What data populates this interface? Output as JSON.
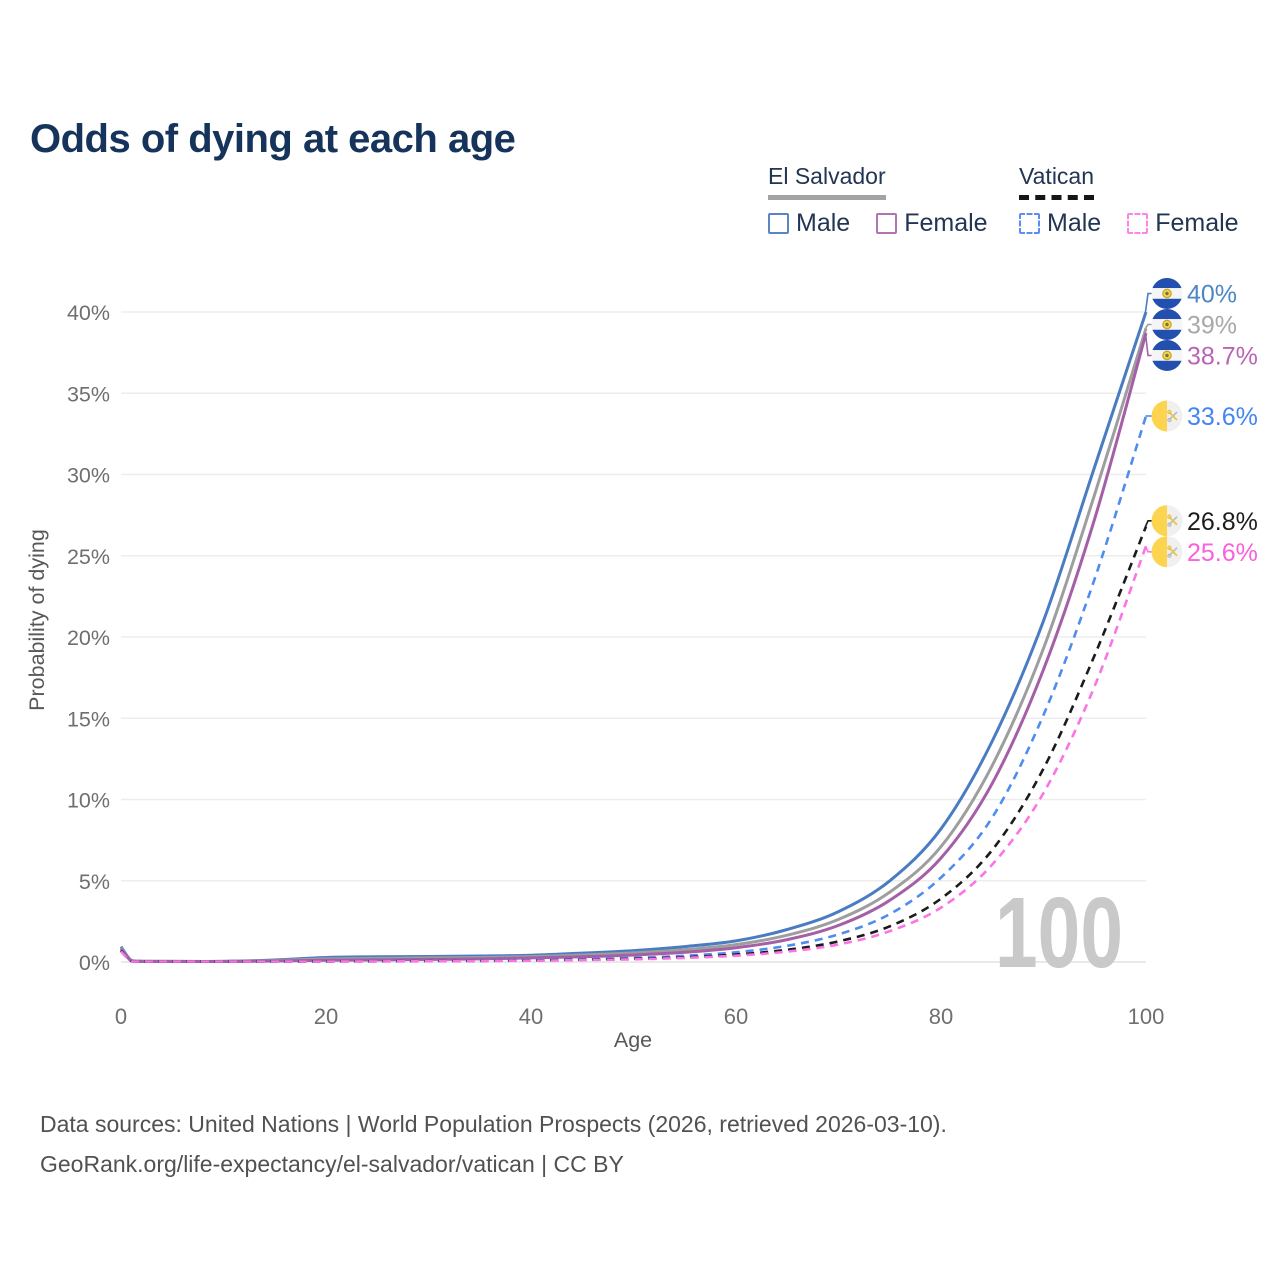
{
  "title": "Odds of dying at each age",
  "legend": {
    "groups": [
      {
        "label": "El Salvador",
        "line_style": "solid",
        "underline_color": "#a3a3a3",
        "items": [
          {
            "label": "Male",
            "color": "#5b84c4",
            "dashed": false
          },
          {
            "label": "Female",
            "color": "#b273b0",
            "dashed": false
          }
        ]
      },
      {
        "label": "Vatican",
        "line_style": "dashed",
        "underline_color": "#161616",
        "items": [
          {
            "label": "Male",
            "color": "#5a8ef5",
            "dashed": true
          },
          {
            "label": "Female",
            "color": "#fc85e6",
            "dashed": true
          }
        ]
      }
    ]
  },
  "footer": {
    "line1": "Data sources: United Nations | World Population Prospects (2026, retrieved 2026-03-10).",
    "line2": "GeoRank.org/life-expectancy/el-salvador/vatican | CC BY"
  },
  "chart_data": {
    "type": "line",
    "title": "Odds of dying at each age",
    "xlabel": "Age",
    "ylabel": "Probability of dying",
    "xlim": [
      0,
      100
    ],
    "ylim": [
      0,
      40
    ],
    "x_ticks": [
      0,
      20,
      40,
      60,
      80,
      100
    ],
    "y_ticks": [
      0,
      5,
      10,
      15,
      20,
      25,
      30,
      35,
      40
    ],
    "y_tick_suffix": "%",
    "grid": "horizontal",
    "legend_position": "top-right",
    "watermark": "100",
    "ages": [
      0,
      1,
      2,
      5,
      10,
      15,
      20,
      25,
      30,
      35,
      40,
      45,
      50,
      55,
      60,
      65,
      70,
      75,
      80,
      85,
      90,
      95,
      100
    ],
    "series": [
      {
        "name": "El Salvador Male",
        "country": "El Salvador",
        "sex": "Male",
        "flag": "el-salvador",
        "dashed": false,
        "color": "#4a7cc2",
        "label_color": "#4d86c6",
        "end_label": "40%",
        "values": [
          0.95,
          0.09,
          0.05,
          0.04,
          0.04,
          0.12,
          0.28,
          0.32,
          0.34,
          0.37,
          0.42,
          0.55,
          0.7,
          0.95,
          1.3,
          2.0,
          3.1,
          5.0,
          8.2,
          13.6,
          21.0,
          30.5,
          40.0
        ]
      },
      {
        "name": "El Salvador Both sexes",
        "country": "El Salvador",
        "sex": "Both",
        "flag": "el-salvador",
        "dashed": false,
        "color": "#9e9e9e",
        "label_color": "#a8a8a8",
        "end_label": "39%",
        "values": [
          0.88,
          0.08,
          0.045,
          0.035,
          0.035,
          0.09,
          0.19,
          0.22,
          0.25,
          0.28,
          0.33,
          0.43,
          0.56,
          0.76,
          1.07,
          1.65,
          2.62,
          4.3,
          7.1,
          12.1,
          19.3,
          28.8,
          39.0
        ]
      },
      {
        "name": "El Salvador Female",
        "country": "El Salvador",
        "sex": "Female",
        "flag": "el-salvador",
        "dashed": false,
        "color": "#a55fa7",
        "label_color": "#b964b4",
        "end_label": "38.7%",
        "values": [
          0.8,
          0.07,
          0.04,
          0.03,
          0.03,
          0.06,
          0.11,
          0.13,
          0.16,
          0.19,
          0.25,
          0.32,
          0.43,
          0.6,
          0.88,
          1.38,
          2.25,
          3.8,
          6.4,
          11.0,
          18.0,
          27.3,
          38.7
        ]
      },
      {
        "name": "Vatican Male",
        "country": "Vatican",
        "sex": "Male",
        "flag": "vatican",
        "dashed": true,
        "color": "#4f8cf0",
        "label_color": "#4285f4",
        "end_label": "33.6%",
        "values": [
          0.75,
          0.05,
          0.03,
          0.02,
          0.015,
          0.025,
          0.045,
          0.055,
          0.07,
          0.09,
          0.12,
          0.17,
          0.25,
          0.38,
          0.6,
          1.0,
          1.7,
          2.95,
          5.2,
          8.9,
          15.2,
          23.6,
          33.6
        ]
      },
      {
        "name": "Vatican Both sexes",
        "country": "Vatican",
        "sex": "Both",
        "flag": "vatican",
        "dashed": true,
        "color": "#1b1b1b",
        "label_color": "#1d1d1d",
        "end_label": "26.8%",
        "values": [
          0.7,
          0.045,
          0.025,
          0.018,
          0.013,
          0.02,
          0.035,
          0.045,
          0.055,
          0.07,
          0.095,
          0.135,
          0.195,
          0.29,
          0.46,
          0.75,
          1.27,
          2.2,
          3.9,
          6.9,
          11.9,
          18.9,
          26.8
        ]
      },
      {
        "name": "Vatican Female",
        "country": "Vatican",
        "sex": "Female",
        "flag": "vatican",
        "dashed": true,
        "color": "#fb74e4",
        "label_color": "#fb60dd",
        "end_label": "25.6%",
        "values": [
          0.65,
          0.04,
          0.022,
          0.015,
          0.012,
          0.018,
          0.03,
          0.038,
          0.048,
          0.06,
          0.082,
          0.115,
          0.165,
          0.25,
          0.39,
          0.64,
          1.08,
          1.9,
          3.35,
          6.0,
          10.4,
          17.0,
          25.6
        ]
      }
    ]
  }
}
